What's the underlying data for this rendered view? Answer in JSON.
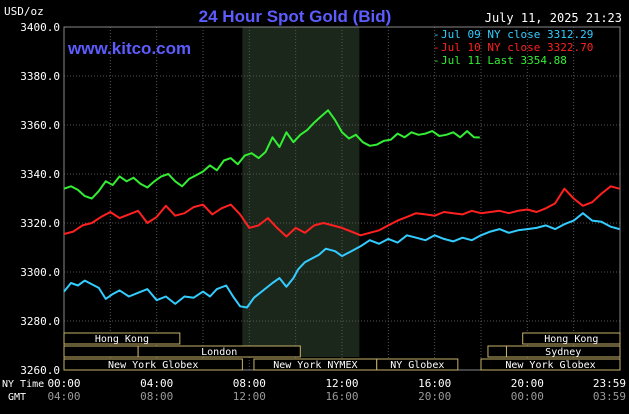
{
  "chart_data": {
    "type": "line",
    "title": "24 Hour Spot Gold (Bid)",
    "timestamp": "July 11, 2025 21:23",
    "watermark": "www.kitco.com",
    "ylabel": "USD/oz",
    "ylim": [
      3260,
      3400
    ],
    "y_ticks": [
      "3400.0",
      "3380.0",
      "3360.0",
      "3340.0",
      "3320.0",
      "3300.0",
      "3280.0",
      "3260.0"
    ],
    "x_range_hours": [
      0,
      24
    ],
    "x_row1_label": "NY Time",
    "x_row2_label": "GMT",
    "x_ticks_ny": [
      "00:00",
      "04:00",
      "08:00",
      "12:00",
      "16:00",
      "20:00",
      "23:59"
    ],
    "x_ticks_gmt": [
      "04:00",
      "08:00",
      "12:00",
      "16:00",
      "20:00",
      "00:00",
      "03:59"
    ],
    "grid": true,
    "legend_position": "top-right",
    "background_color": "#000000",
    "grid_color": "#555555",
    "session_band_color": "#1c271c",
    "session_band_hours": [
      7.7,
      12.75
    ],
    "series": [
      {
        "name": "Jul 09 NY close 3312.29",
        "color": "#33ccff",
        "x": [
          0.0,
          0.3,
          0.6,
          0.9,
          1.2,
          1.5,
          1.8,
          2.1,
          2.4,
          2.8,
          3.2,
          3.6,
          4.0,
          4.4,
          4.8,
          5.2,
          5.6,
          6.0,
          6.3,
          6.6,
          7.0,
          7.3,
          7.6,
          7.9,
          8.2,
          8.6,
          9.0,
          9.3,
          9.6,
          9.9,
          10.1,
          10.4,
          10.7,
          11.0,
          11.3,
          11.7,
          12.0,
          12.4,
          12.8,
          13.2,
          13.6,
          14.0,
          14.4,
          14.8,
          15.2,
          15.6,
          16.0,
          16.4,
          16.8,
          17.2,
          17.6,
          18.0,
          18.4,
          18.8,
          19.2,
          19.6,
          20.0,
          20.4,
          20.8,
          21.2,
          21.6,
          22.0,
          22.4,
          22.8,
          23.2,
          23.6,
          23.98
        ],
        "y": [
          3292.0,
          3295.5,
          3294.5,
          3296.5,
          3295.0,
          3293.5,
          3289.0,
          3291.0,
          3292.5,
          3290.0,
          3291.5,
          3293.0,
          3288.5,
          3290.0,
          3287.0,
          3290.0,
          3289.5,
          3292.0,
          3290.0,
          3293.0,
          3294.5,
          3290.0,
          3286.0,
          3285.5,
          3289.5,
          3292.5,
          3295.5,
          3297.5,
          3294.0,
          3297.5,
          3301.0,
          3304.0,
          3305.5,
          3307.0,
          3309.5,
          3308.5,
          3306.5,
          3308.5,
          3310.5,
          3313.0,
          3311.5,
          3313.5,
          3312.0,
          3315.0,
          3314.0,
          3313.0,
          3315.0,
          3313.5,
          3312.5,
          3314.0,
          3313.0,
          3315.0,
          3316.5,
          3317.5,
          3316.0,
          3317.0,
          3317.5,
          3318.0,
          3319.0,
          3317.5,
          3319.5,
          3321.0,
          3324.0,
          3321.0,
          3320.5,
          3318.5,
          3317.5
        ]
      },
      {
        "name": "Jul 10 NY close 3322.70",
        "color": "#ff2020",
        "x": [
          0.0,
          0.4,
          0.8,
          1.2,
          1.6,
          2.0,
          2.4,
          2.8,
          3.2,
          3.6,
          4.0,
          4.4,
          4.8,
          5.2,
          5.6,
          6.0,
          6.4,
          6.8,
          7.2,
          7.6,
          8.0,
          8.4,
          8.8,
          9.2,
          9.6,
          10.0,
          10.4,
          10.8,
          11.2,
          11.6,
          12.0,
          12.4,
          12.8,
          13.2,
          13.6,
          14.0,
          14.4,
          14.8,
          15.2,
          15.6,
          16.0,
          16.4,
          16.8,
          17.2,
          17.6,
          18.0,
          18.4,
          18.8,
          19.2,
          19.6,
          20.0,
          20.4,
          20.8,
          21.2,
          21.6,
          22.0,
          22.4,
          22.8,
          23.2,
          23.6,
          23.98
        ],
        "y": [
          3315.5,
          3316.5,
          3319.0,
          3320.0,
          3322.5,
          3324.5,
          3322.0,
          3323.5,
          3325.0,
          3320.0,
          3322.5,
          3327.0,
          3323.0,
          3324.0,
          3326.5,
          3327.5,
          3323.5,
          3326.0,
          3327.5,
          3323.5,
          3318.0,
          3319.0,
          3322.0,
          3318.0,
          3314.5,
          3318.0,
          3316.0,
          3319.0,
          3320.0,
          3319.0,
          3318.0,
          3316.5,
          3315.0,
          3316.0,
          3317.0,
          3319.0,
          3321.0,
          3322.5,
          3324.0,
          3323.5,
          3323.0,
          3324.5,
          3324.0,
          3323.5,
          3325.0,
          3324.0,
          3324.5,
          3325.0,
          3324.0,
          3325.0,
          3325.5,
          3324.5,
          3326.0,
          3328.0,
          3334.0,
          3330.0,
          3327.0,
          3328.5,
          3332.0,
          3335.0,
          3334.0
        ]
      },
      {
        "name": "Jul 11 Last 3354.88",
        "color": "#33ee33",
        "x": [
          0.0,
          0.3,
          0.6,
          0.9,
          1.2,
          1.5,
          1.8,
          2.1,
          2.4,
          2.7,
          3.0,
          3.3,
          3.6,
          3.9,
          4.2,
          4.5,
          4.8,
          5.1,
          5.4,
          5.7,
          6.0,
          6.3,
          6.6,
          6.9,
          7.2,
          7.5,
          7.8,
          8.1,
          8.4,
          8.7,
          9.0,
          9.3,
          9.6,
          9.9,
          10.2,
          10.5,
          10.8,
          11.1,
          11.4,
          11.7,
          12.0,
          12.3,
          12.6,
          12.9,
          13.2,
          13.5,
          13.8,
          14.1,
          14.4,
          14.7,
          15.0,
          15.3,
          15.6,
          15.9,
          16.2,
          16.5,
          16.8,
          17.1,
          17.4,
          17.7,
          17.95
        ],
        "y": [
          3334.0,
          3335.0,
          3333.5,
          3331.0,
          3330.0,
          3333.0,
          3337.0,
          3335.5,
          3339.0,
          3337.0,
          3338.5,
          3336.0,
          3334.5,
          3337.0,
          3339.0,
          3340.0,
          3337.0,
          3335.0,
          3338.0,
          3339.5,
          3341.0,
          3343.5,
          3341.5,
          3345.5,
          3346.5,
          3344.0,
          3347.5,
          3348.5,
          3346.5,
          3349.0,
          3355.0,
          3351.0,
          3357.0,
          3353.0,
          3356.0,
          3358.0,
          3361.0,
          3363.5,
          3366.0,
          3362.0,
          3357.0,
          3354.5,
          3356.0,
          3353.0,
          3351.5,
          3352.0,
          3353.5,
          3354.0,
          3356.5,
          3355.0,
          3357.0,
          3356.0,
          3356.5,
          3357.5,
          3355.5,
          3356.0,
          3357.0,
          3355.0,
          3357.5,
          3355.0,
          3354.9
        ]
      }
    ],
    "sessions": [
      {
        "label": "Hong Kong",
        "start": 0.0,
        "end": 5.0,
        "row": 0
      },
      {
        "label": "",
        "start": 0.0,
        "end": 3.2,
        "row": 1
      },
      {
        "label": "London",
        "start": 3.2,
        "end": 10.2,
        "row": 1
      },
      {
        "label": "New York Globex",
        "start": 0.0,
        "end": 7.7,
        "row": 2
      },
      {
        "label": "New York NYMEX",
        "start": 8.2,
        "end": 13.5,
        "row": 2
      },
      {
        "label": "NY Globex",
        "start": 13.5,
        "end": 17.0,
        "row": 2
      },
      {
        "label": "Hong Kong",
        "start": 19.8,
        "end": 24.0,
        "row": 0
      },
      {
        "label": "",
        "start": 18.3,
        "end": 19.1,
        "row": 1
      },
      {
        "label": "Sydney",
        "start": 19.1,
        "end": 24.0,
        "row": 1
      },
      {
        "label": "New York Globex",
        "start": 18.0,
        "end": 24.0,
        "row": 2
      }
    ]
  }
}
